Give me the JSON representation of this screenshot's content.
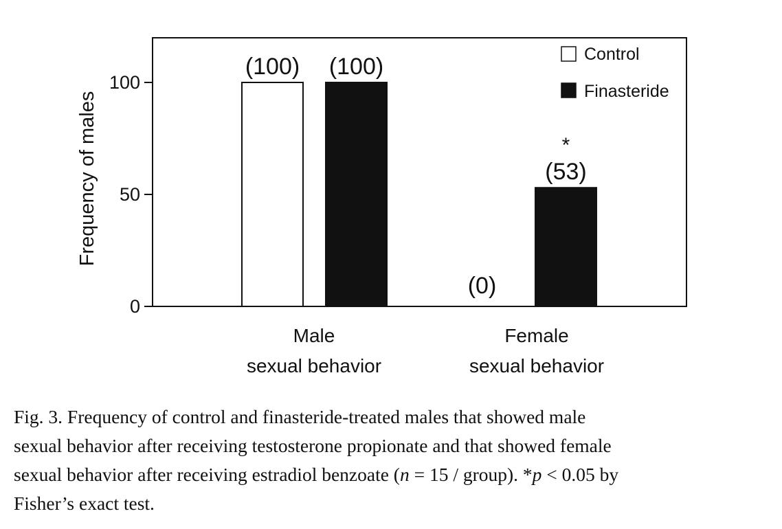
{
  "chart_data": {
    "type": "bar",
    "ylabel": "Frequency of males",
    "ylim": [
      0,
      120
    ],
    "yticks": [
      0,
      50,
      100
    ],
    "ytick_labels": [
      "0",
      "50",
      "100"
    ],
    "categories": [
      {
        "line1": "Male",
        "line2": "sexual behavior"
      },
      {
        "line1": "Female",
        "line2": "sexual behavior"
      }
    ],
    "series": [
      {
        "name": "Control",
        "values": [
          100,
          0
        ],
        "labels": [
          "(100)",
          "(0)"
        ],
        "fill": "#ffffff"
      },
      {
        "name": "Finasteride",
        "values": [
          100,
          53
        ],
        "labels": [
          "(100)",
          "(53)"
        ],
        "fill": "#111111"
      }
    ],
    "annotations": [
      {
        "text": "*",
        "category": 1,
        "series": 1
      }
    ],
    "legend_position": "top-right"
  },
  "caption": {
    "line1": "Fig. 3. Frequency of control and finasteride-treated males that showed male",
    "line2": "sexual behavior after receiving testosterone propionate and that showed female",
    "line3_a": "sexual behavior after receiving estradiol benzoate (",
    "line3_n": "n",
    "line3_b": " = 15 / group). *",
    "line3_p": "p",
    "line3_c": " < 0.05 by",
    "line4": "Fisher’s exact test."
  }
}
